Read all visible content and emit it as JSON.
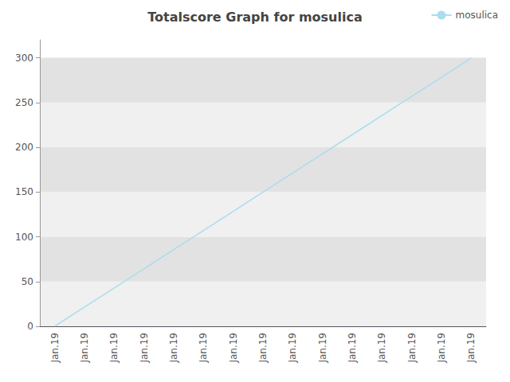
{
  "chart_data": {
    "type": "line",
    "title": "Totalscore Graph for mosulica",
    "categories": [
      "Jan.19",
      "Jan.19",
      "Jan.19",
      "Jan.19",
      "Jan.19",
      "Jan.19",
      "Jan.19",
      "Jan.19",
      "Jan.19",
      "Jan.19",
      "Jan.19",
      "Jan.19",
      "Jan.19",
      "Jan.19",
      "Jan.19"
    ],
    "series": [
      {
        "name": "mosulica",
        "color": "#aaddee",
        "values": [
          0,
          21.4,
          42.8,
          64.2,
          85.6,
          107.0,
          128.4,
          149.8,
          171.2,
          192.6,
          214.0,
          235.4,
          256.8,
          278.2,
          299.6
        ]
      }
    ],
    "ylim": [
      0,
      320
    ],
    "yticks": [
      0,
      50,
      100,
      150,
      200,
      250,
      300
    ],
    "grid": false,
    "legend": "upper right"
  }
}
